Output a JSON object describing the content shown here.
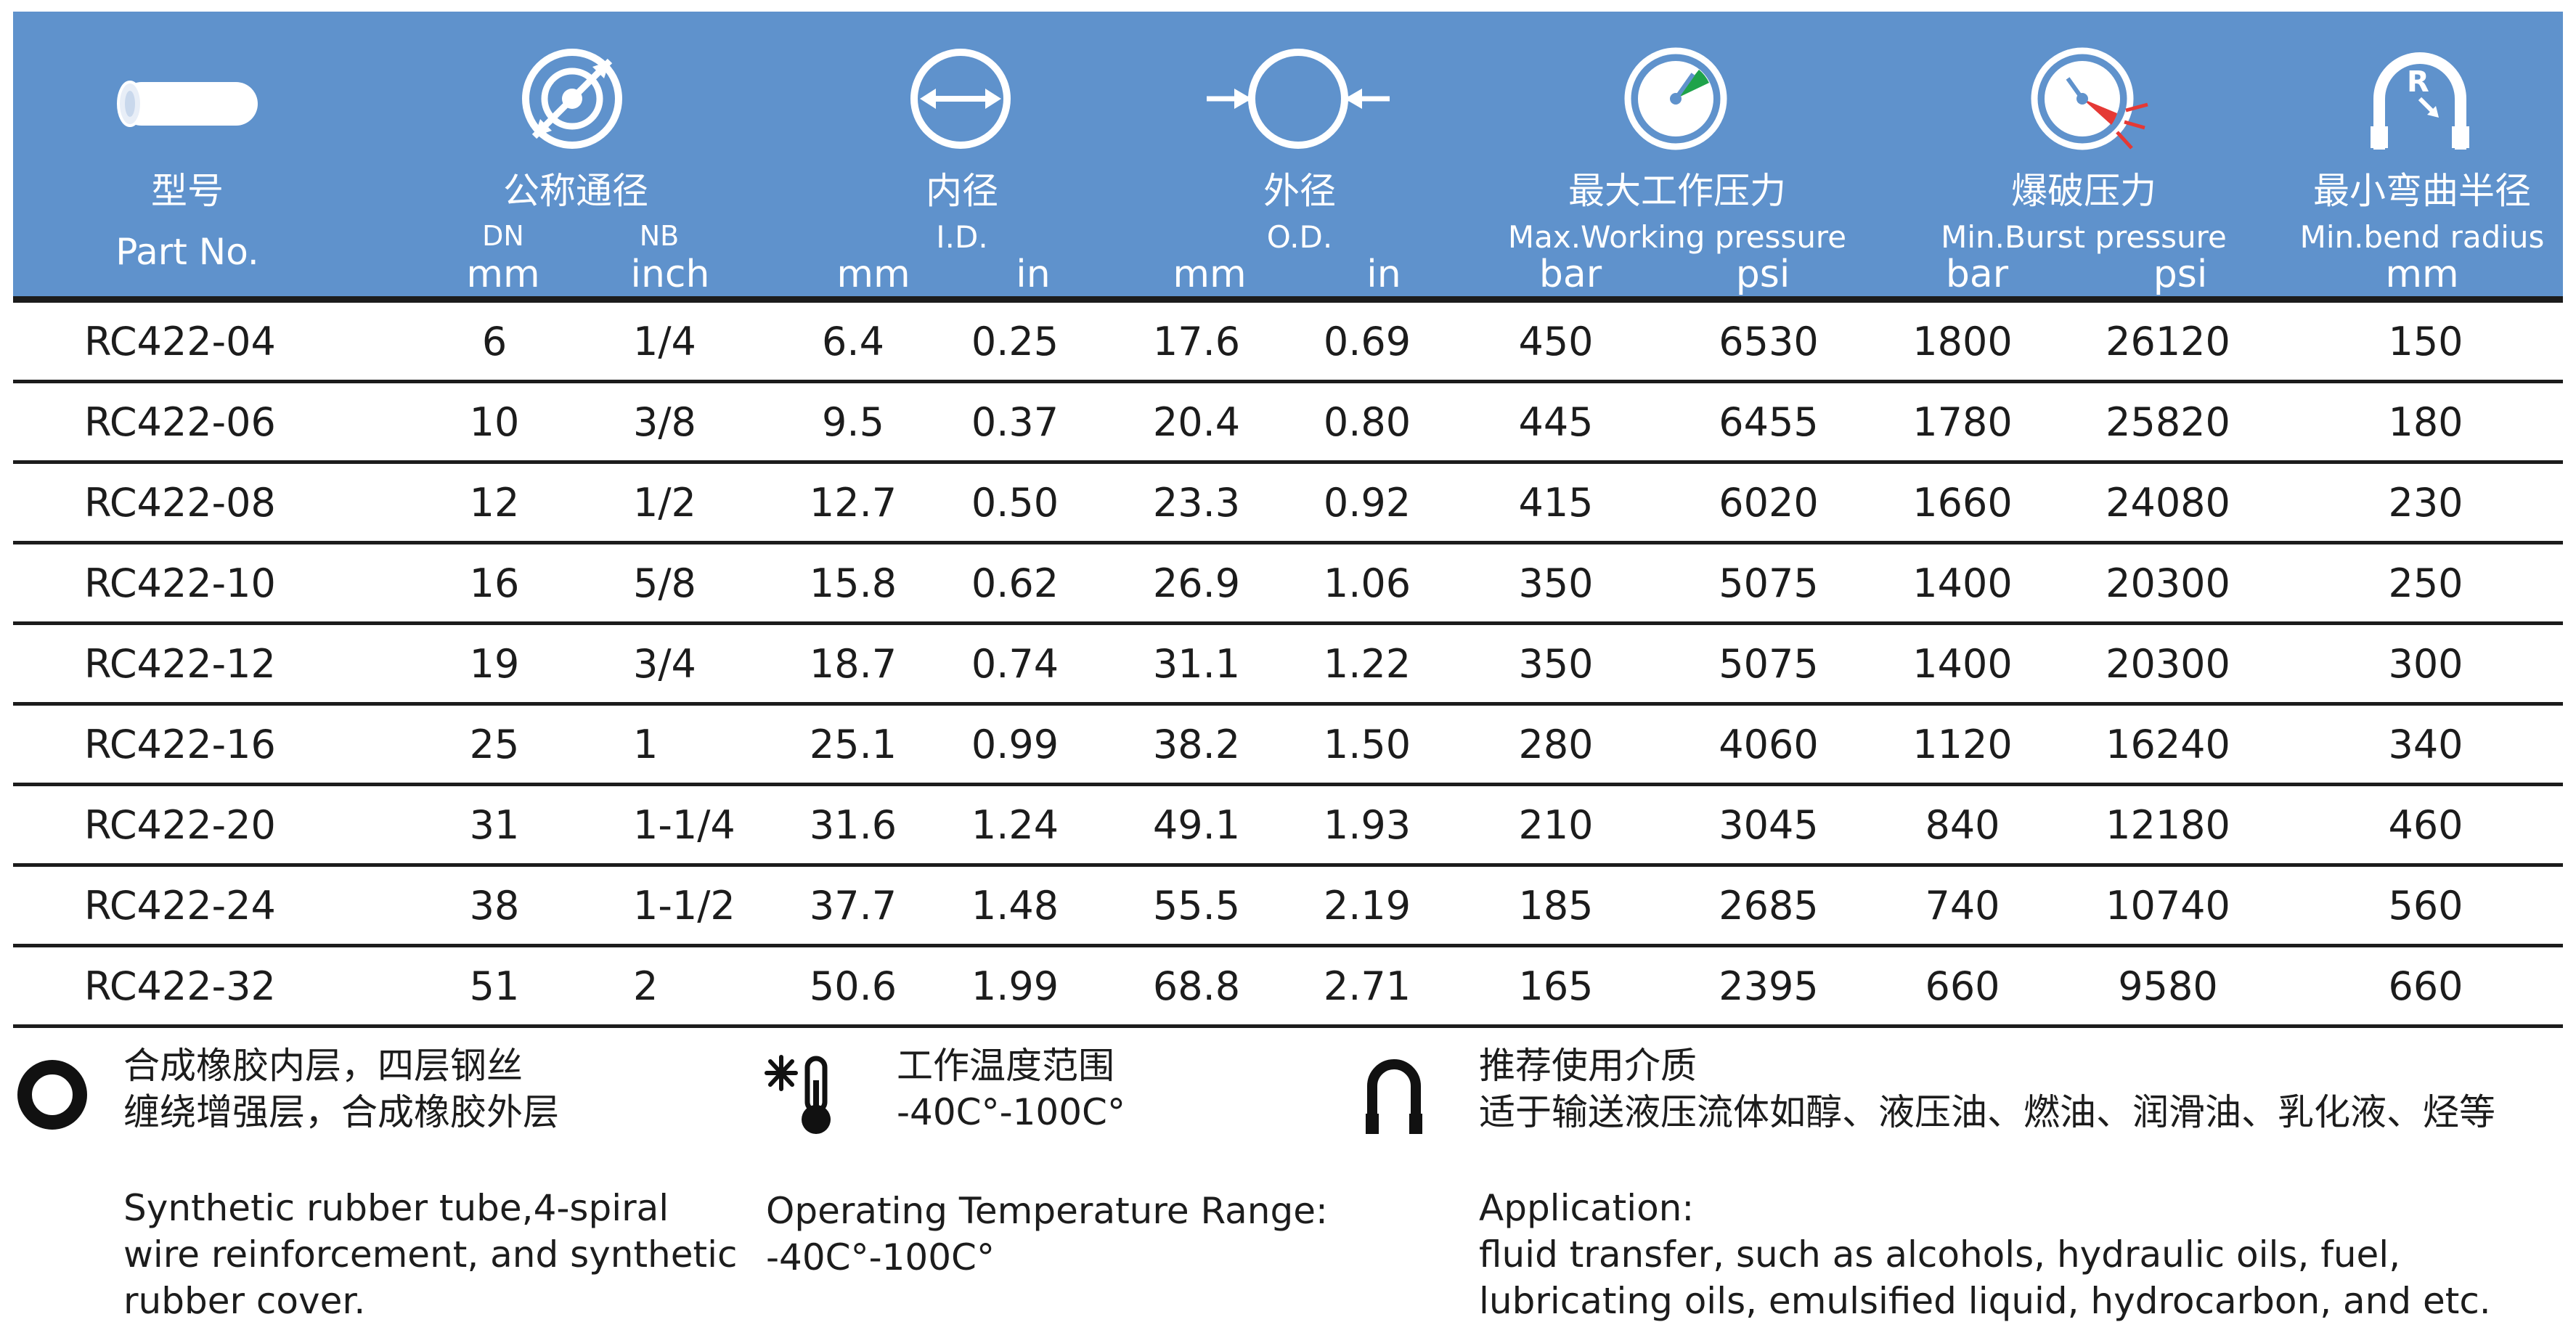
{
  "header": {
    "part": {
      "title_cn": "型号",
      "title_en": "Part No.",
      "icon": "hose-tube-icon"
    },
    "nominal": {
      "title_cn": "公称通径",
      "dn_label": "DN",
      "nb_label": "NB",
      "dn_unit": "mm",
      "nb_unit": "inch",
      "icon": "nominal-bore-icon"
    },
    "id": {
      "title_cn": "内径",
      "title_en": "I.D.",
      "unit_mm": "mm",
      "unit_in": "in",
      "icon": "inner-diameter-icon"
    },
    "od": {
      "title_cn": "外径",
      "title_en": "O.D.",
      "unit_mm": "mm",
      "unit_in": "in",
      "icon": "outer-diameter-icon"
    },
    "wp": {
      "title_cn": "最大工作压力",
      "title_en": "Max.Working pressure",
      "unit_bar": "bar",
      "unit_psi": "psi",
      "icon": "pressure-gauge-icon"
    },
    "bp": {
      "title_cn": "爆破压力",
      "title_en": "Min.Burst pressure",
      "unit_bar": "bar",
      "unit_psi": "psi",
      "icon": "burst-gauge-icon"
    },
    "br": {
      "title_cn": "最小弯曲半径",
      "title_en": "Min.bend radius",
      "unit": "mm",
      "icon": "bend-radius-icon"
    }
  },
  "rows": [
    {
      "part": "RC422-04",
      "dn": "6",
      "nb": "1/4",
      "id_mm": "6.4",
      "id_in": "0.25",
      "od_mm": "17.6",
      "od_in": "0.69",
      "wp_bar": "450",
      "wp_psi": "6530",
      "bp_bar": "1800",
      "bp_psi": "26120",
      "br": "150"
    },
    {
      "part": "RC422-06",
      "dn": "10",
      "nb": "3/8",
      "id_mm": "9.5",
      "id_in": "0.37",
      "od_mm": "20.4",
      "od_in": "0.80",
      "wp_bar": "445",
      "wp_psi": "6455",
      "bp_bar": "1780",
      "bp_psi": "25820",
      "br": "180"
    },
    {
      "part": "RC422-08",
      "dn": "12",
      "nb": "1/2",
      "id_mm": "12.7",
      "id_in": "0.50",
      "od_mm": "23.3",
      "od_in": "0.92",
      "wp_bar": "415",
      "wp_psi": "6020",
      "bp_bar": "1660",
      "bp_psi": "24080",
      "br": "230"
    },
    {
      "part": "RC422-10",
      "dn": "16",
      "nb": "5/8",
      "id_mm": "15.8",
      "id_in": "0.62",
      "od_mm": "26.9",
      "od_in": "1.06",
      "wp_bar": "350",
      "wp_psi": "5075",
      "bp_bar": "1400",
      "bp_psi": "20300",
      "br": "250"
    },
    {
      "part": "RC422-12",
      "dn": "19",
      "nb": "3/4",
      "id_mm": "18.7",
      "id_in": "0.74",
      "od_mm": "31.1",
      "od_in": "1.22",
      "wp_bar": "350",
      "wp_psi": "5075",
      "bp_bar": "1400",
      "bp_psi": "20300",
      "br": "300"
    },
    {
      "part": "RC422-16",
      "dn": "25",
      "nb": "1",
      "id_mm": "25.1",
      "id_in": "0.99",
      "od_mm": "38.2",
      "od_in": "1.50",
      "wp_bar": "280",
      "wp_psi": "4060",
      "bp_bar": "1120",
      "bp_psi": "16240",
      "br": "340"
    },
    {
      "part": "RC422-20",
      "dn": "31",
      "nb": "1-1/4",
      "id_mm": "31.6",
      "id_in": "1.24",
      "od_mm": "49.1",
      "od_in": "1.93",
      "wp_bar": "210",
      "wp_psi": "3045",
      "bp_bar": "840",
      "bp_psi": "12180",
      "br": "460"
    },
    {
      "part": "RC422-24",
      "dn": "38",
      "nb": "1-1/2",
      "id_mm": "37.7",
      "id_in": "1.48",
      "od_mm": "55.5",
      "od_in": "2.19",
      "wp_bar": "185",
      "wp_psi": "2685",
      "bp_bar": "740",
      "bp_psi": "10740",
      "br": "560"
    },
    {
      "part": "RC422-32",
      "dn": "51",
      "nb": "2",
      "id_mm": "50.6",
      "id_in": "1.99",
      "od_mm": "68.8",
      "od_in": "2.71",
      "wp_bar": "165",
      "wp_psi": "2395",
      "bp_bar": "660",
      "bp_psi": "9580",
      "br": "660"
    }
  ],
  "footer": {
    "construction": {
      "icon": "ring-cross-section-icon",
      "cn_line1": "合成橡胶内层，四层钢丝",
      "cn_line2": "缠绕增强层，合成橡胶外层",
      "en_line1": "Synthetic rubber tube,4-spiral",
      "en_line2": "wire reinforcement, and synthetic",
      "en_line3": "rubber cover."
    },
    "temperature": {
      "icon": "thermometer-snowflake-icon",
      "cn_title": "工作温度范围",
      "cn_value": "-40C°-100C°",
      "en_title": "Operating Temperature Range:",
      "en_value": "-40C°-100C°"
    },
    "application": {
      "icon": "u-hose-icon",
      "cn_title": "推荐使用介质",
      "cn_value": "适于输送液压流体如醇、液压油、燃油、润滑油、乳化液、烃等",
      "en_title": "Application:",
      "en_line1": "fluid transfer, such as alcohols, hydraulic oils, fuel,",
      "en_line2": "lubricating oils, emulsified liquid, hydrocarbon, and etc."
    }
  },
  "colors": {
    "header_bg": "#5f92cc",
    "rule": "#1c1c1c",
    "gauge_green": "#1fa34a",
    "gauge_red": "#e53935"
  }
}
